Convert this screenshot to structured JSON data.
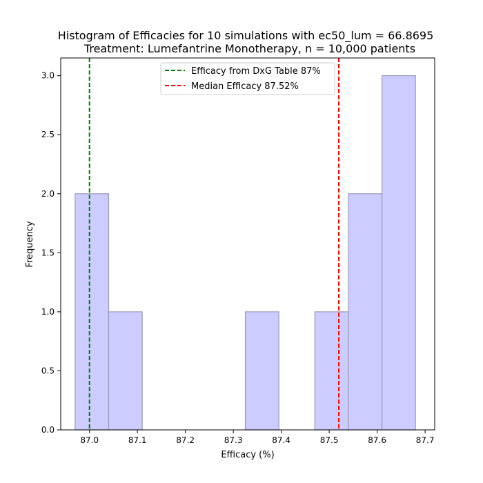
{
  "chart_data": {
    "type": "bar",
    "title_line1": "Histogram of Efficacies for 10 simulations with ec50_lum = 66.8695",
    "title_line2": "Treatment: Lumefantrine Monotherapy, n = 10,000 patients",
    "xlabel": "Efficacy (%)",
    "ylabel": "Frequency",
    "xlim": [
      86.94,
      87.72
    ],
    "ylim": [
      0,
      3.15
    ],
    "x_ticks": [
      87.0,
      87.1,
      87.2,
      87.3,
      87.4,
      87.5,
      87.6,
      87.7
    ],
    "x_tick_labels": [
      "87.0",
      "87.1",
      "87.2",
      "87.3",
      "87.4",
      "87.5",
      "87.6",
      "87.7"
    ],
    "y_ticks": [
      0,
      0.5,
      1.0,
      1.5,
      2.0,
      2.5,
      3.0
    ],
    "y_tick_labels": [
      "0.0",
      "0.5",
      "1.0",
      "1.5",
      "2.0",
      "2.5",
      "3.0"
    ],
    "bins": [
      {
        "x0": 86.97,
        "x1": 87.04,
        "count": 2
      },
      {
        "x0": 87.04,
        "x1": 87.11,
        "count": 1
      },
      {
        "x0": 87.11,
        "x1": 87.18,
        "count": 0
      },
      {
        "x0": 87.18,
        "x1": 87.255,
        "count": 0
      },
      {
        "x0": 87.255,
        "x1": 87.325,
        "count": 0
      },
      {
        "x0": 87.325,
        "x1": 87.395,
        "count": 1
      },
      {
        "x0": 87.395,
        "x1": 87.47,
        "count": 0
      },
      {
        "x0": 87.47,
        "x1": 87.54,
        "count": 1
      },
      {
        "x0": 87.54,
        "x1": 87.61,
        "count": 2
      },
      {
        "x0": 87.61,
        "x1": 87.68,
        "count": 3
      }
    ],
    "reference_lines": [
      {
        "label": "Efficacy from DxG Table 87%",
        "x": 87.0,
        "color": "#008000"
      },
      {
        "label": "Median Efficacy 87.52%",
        "x": 87.52,
        "color": "#ff0000"
      }
    ],
    "bar_color": "#ccccff",
    "bar_edge_color": "#9999bb",
    "legend_position": "upper-center"
  }
}
